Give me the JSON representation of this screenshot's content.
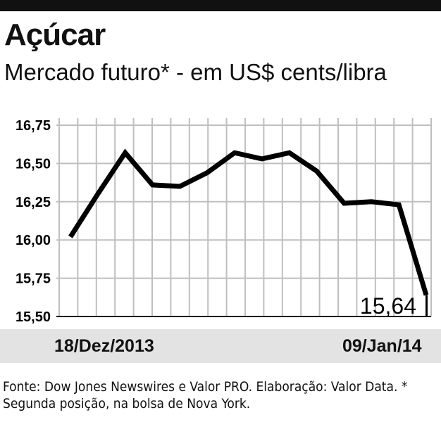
{
  "header": {
    "title": "Açúcar",
    "subtitle": "Mercado futuro* - em US$ cents/libra"
  },
  "footer": {
    "source": "Fonte: Dow Jones Newswires e Valor PRO. Elaboração: Valor Data. * Segunda posição, na bolsa de Nova York."
  },
  "colors": {
    "line": "#000000",
    "grid": "#bfbfbf",
    "band": "#e3e3e3",
    "topbar": "#111111"
  },
  "chart_data": {
    "type": "line",
    "title": "Açúcar",
    "subtitle": "Mercado futuro* - em US$ cents/libra",
    "ylim": [
      15.5,
      16.75
    ],
    "yticks": [
      "16,75",
      "16,50",
      "16,25",
      "16,00",
      "15,75",
      "15,50"
    ],
    "ytick_values": [
      16.75,
      16.5,
      16.25,
      16.0,
      15.75,
      15.5
    ],
    "x_start_label": "18/Dez/2013",
    "x_end_label": "09/Jan/14",
    "grid": true,
    "series": [
      {
        "values": [
          16.02,
          16.3,
          16.57,
          16.36,
          16.35,
          16.44,
          16.57,
          16.53,
          16.57,
          16.45,
          16.24,
          16.25,
          16.23,
          15.64
        ]
      }
    ],
    "annotation": "15,64"
  }
}
